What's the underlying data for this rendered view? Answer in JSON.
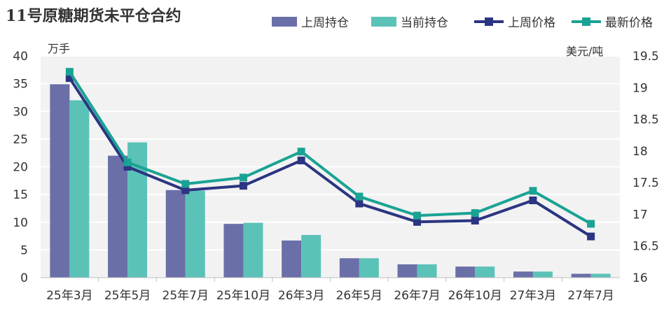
{
  "chart_data": {
    "type": "bar",
    "title": "11号原糖期货未平仓合约",
    "categories": [
      "25年3月",
      "25年5月",
      "25年7月",
      "25年10月",
      "26年3月",
      "26年5月",
      "26年7月",
      "26年10月",
      "27年3月",
      "27年7月"
    ],
    "series": [
      {
        "name": "上周持仓",
        "type": "bar",
        "axis": "left",
        "color": "#6b6fa8",
        "values": [
          34.9,
          22.0,
          15.8,
          9.7,
          6.7,
          3.5,
          2.4,
          2.0,
          1.1,
          0.7
        ]
      },
      {
        "name": "当前持仓",
        "type": "bar",
        "axis": "left",
        "color": "#5bc2b8",
        "values": [
          32.0,
          24.4,
          15.7,
          9.9,
          7.7,
          3.5,
          2.4,
          2.0,
          1.1,
          0.7
        ]
      },
      {
        "name": "上周价格",
        "type": "line",
        "axis": "right",
        "color": "#2c3582",
        "values": [
          19.15,
          17.75,
          17.38,
          17.45,
          17.85,
          17.17,
          16.88,
          16.9,
          17.22,
          16.65
        ]
      },
      {
        "name": "最新价格",
        "type": "line",
        "axis": "right",
        "color": "#1aa394",
        "values": [
          19.25,
          17.82,
          17.48,
          17.58,
          17.99,
          17.28,
          16.98,
          17.02,
          17.37,
          16.85
        ]
      }
    ],
    "y_left": {
      "label": "万手",
      "min": 0,
      "max": 40,
      "ticks": [
        0,
        5,
        10,
        15,
        20,
        25,
        30,
        35,
        40
      ]
    },
    "y_right": {
      "label": "美元/吨",
      "min": 16,
      "max": 19.5,
      "ticks": [
        "16",
        "16.5",
        "17",
        "17.5",
        "18",
        "18.5",
        "19",
        "19.5"
      ]
    },
    "grid": true,
    "legend_position": "top-right"
  }
}
